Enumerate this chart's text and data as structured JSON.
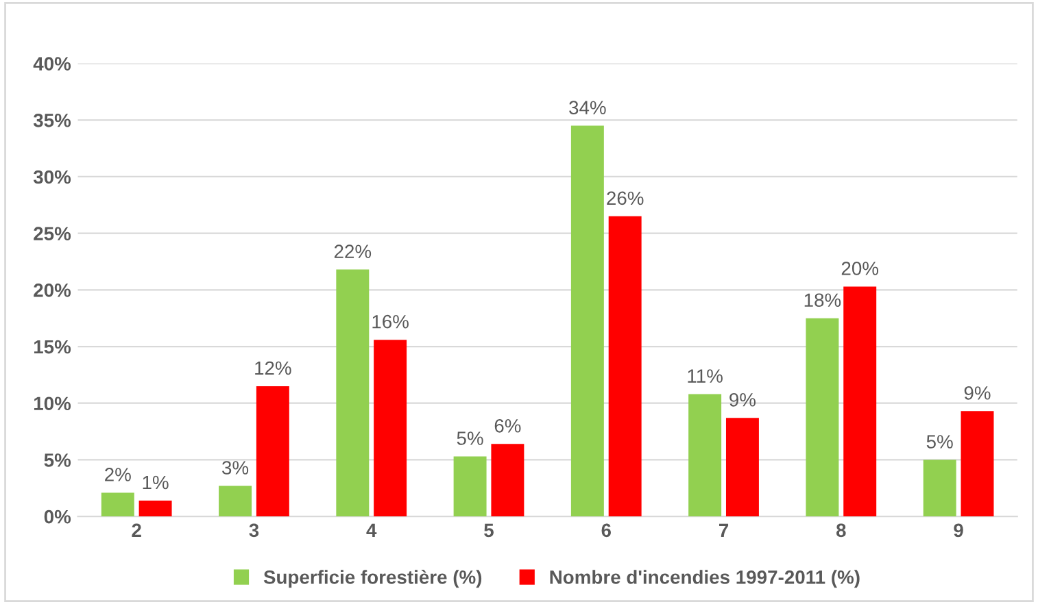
{
  "chart_data": {
    "type": "bar",
    "categories": [
      "2",
      "3",
      "4",
      "5",
      "6",
      "7",
      "8",
      "9"
    ],
    "series": [
      {
        "name": "Superficie forestière (%)",
        "color": "#92d050",
        "values": [
          2.1,
          2.7,
          21.8,
          5.3,
          34.5,
          10.8,
          17.5,
          5.0
        ],
        "value_labels": [
          "2%",
          "3%",
          "22%",
          "5%",
          "34%",
          "11%",
          "18%",
          "5%"
        ]
      },
      {
        "name": "Nombre d'incendies 1997-2011 (%)",
        "color": "#ff0000",
        "values": [
          1.4,
          11.5,
          15.6,
          6.4,
          26.5,
          8.7,
          20.3,
          9.3
        ],
        "value_labels": [
          "1%",
          "12%",
          "16%",
          "6%",
          "26%",
          "9%",
          "20%",
          "9%"
        ]
      }
    ],
    "ylim": [
      0,
      40
    ],
    "yticks": [
      {
        "value": 0,
        "label": "0%"
      },
      {
        "value": 5,
        "label": "5%"
      },
      {
        "value": 10,
        "label": "10%"
      },
      {
        "value": 15,
        "label": "15%"
      },
      {
        "value": 20,
        "label": "20%"
      },
      {
        "value": 25,
        "label": "25%"
      },
      {
        "value": 30,
        "label": "30%"
      },
      {
        "value": 35,
        "label": "35%"
      },
      {
        "value": 40,
        "label": "40%"
      }
    ],
    "grid": "y",
    "legend": "bottom"
  }
}
